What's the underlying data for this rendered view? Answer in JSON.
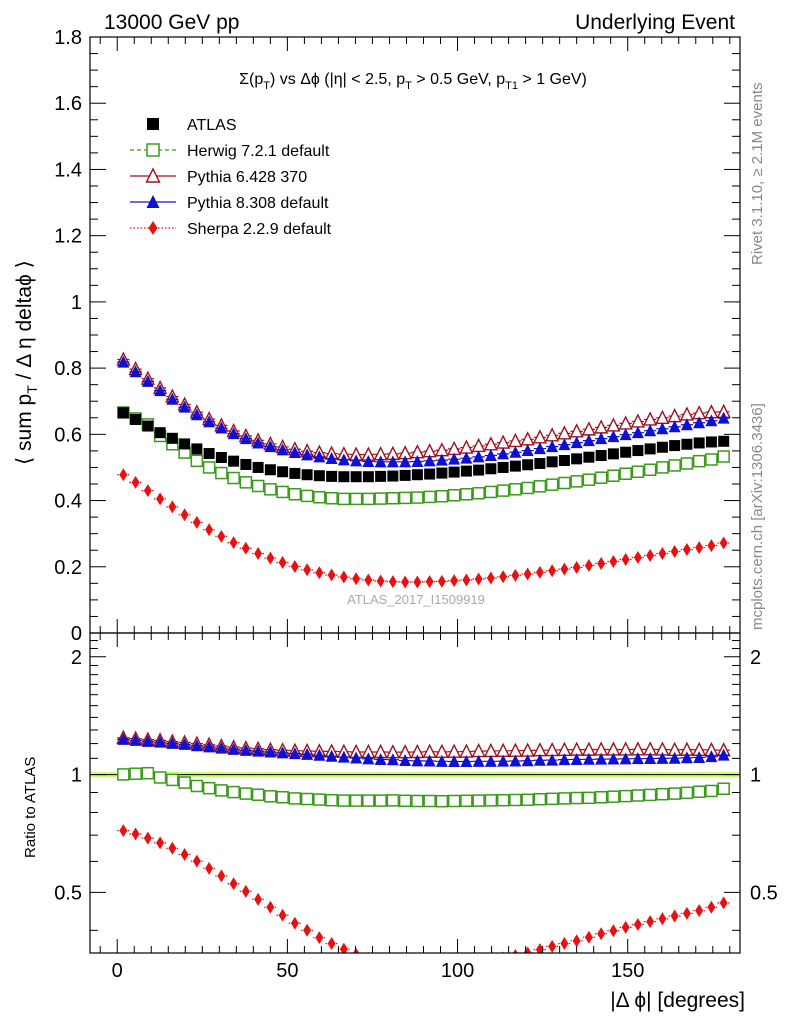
{
  "header": {
    "left": "13000 GeV pp",
    "right": "Underlying Event"
  },
  "side_labels": {
    "rivet": "Rivet 3.1.10, ≥ 2.1M events",
    "mcplots": "mcplots.cern.ch [arXiv:1306.3436]"
  },
  "watermark": "ATLAS_2017_I1509919",
  "title": {
    "p1": "Σ(p",
    "p1_sub": "T",
    "p2": ") vs Δϕ (|η| < 2.5, p",
    "p2_sub": "T",
    "p3": " > 0.5 GeV, p",
    "p3_sub": "T1",
    "p4": " > 1 GeV)"
  },
  "ylabel_main": {
    "a": "⟨ sum p",
    "a_sub": "T",
    "b": " / Δ η deltaϕ ⟩"
  },
  "ylabel_ratio": "Ratio to ATLAS",
  "xlabel": "|Δ ϕ| [degrees]",
  "colors": {
    "atlas": "#000000",
    "herwig": "#3a9a1a",
    "pythia6": "#a01020",
    "pythia8": "#1010d0",
    "sherpa": "#e81010",
    "band": "#ccff66"
  },
  "chart_data": [
    {
      "type": "scatter",
      "title": "Σ(pT) vs Δϕ (|η| < 2.5, pT > 0.5 GeV, pT1 > 1 GeV)",
      "xlabel": "|Δ ϕ| [degrees]",
      "ylabel": "⟨ sum pT / Δ η deltaϕ ⟩",
      "xlim": [
        -8,
        183
      ],
      "ylim": [
        0,
        1.8
      ],
      "yticks": [
        0,
        0.2,
        0.4,
        0.6,
        0.8,
        1,
        1.2,
        1.4,
        1.6,
        1.8
      ],
      "ytick_labels": [
        "0",
        "0.2",
        "0.4",
        "0.6",
        "0.8",
        "1",
        "1.2",
        "1.4",
        "1.6",
        "1.8"
      ],
      "xticks": [
        0,
        50,
        100,
        150
      ],
      "xtick_labels": [
        "0",
        "50",
        "100",
        "150"
      ],
      "grid": false,
      "legend_position": "top-left",
      "x": [
        1.8,
        5.4,
        9.0,
        12.6,
        16.2,
        19.8,
        23.4,
        27.0,
        30.6,
        34.2,
        37.8,
        41.4,
        45.0,
        48.6,
        52.2,
        55.8,
        59.4,
        63.0,
        66.6,
        70.2,
        73.8,
        77.4,
        81.0,
        84.6,
        88.2,
        91.8,
        95.4,
        99.0,
        102.6,
        106.2,
        109.8,
        113.4,
        117.0,
        120.6,
        124.2,
        127.8,
        131.4,
        135.0,
        138.6,
        142.2,
        145.8,
        149.4,
        153.0,
        156.6,
        160.2,
        163.8,
        167.4,
        171.0,
        174.6,
        178.2
      ],
      "series": [
        {
          "name": "ATLAS",
          "marker": "square-filled",
          "values": [
            0.665,
            0.645,
            0.625,
            0.605,
            0.588,
            0.571,
            0.556,
            0.542,
            0.53,
            0.519,
            0.509,
            0.5,
            0.493,
            0.487,
            0.482,
            0.478,
            0.475,
            0.473,
            0.472,
            0.472,
            0.472,
            0.473,
            0.474,
            0.476,
            0.478,
            0.48,
            0.483,
            0.486,
            0.489,
            0.492,
            0.496,
            0.5,
            0.504,
            0.508,
            0.512,
            0.517,
            0.521,
            0.526,
            0.531,
            0.536,
            0.541,
            0.546,
            0.551,
            0.556,
            0.561,
            0.566,
            0.57,
            0.574,
            0.577,
            0.579
          ]
        },
        {
          "name": "Herwig 7.2.1 default",
          "marker": "square-open",
          "values": [
            0.666,
            0.648,
            0.63,
            0.595,
            0.57,
            0.545,
            0.52,
            0.5,
            0.483,
            0.468,
            0.455,
            0.444,
            0.434,
            0.426,
            0.419,
            0.414,
            0.41,
            0.407,
            0.405,
            0.405,
            0.405,
            0.406,
            0.407,
            0.408,
            0.409,
            0.411,
            0.413,
            0.416,
            0.419,
            0.422,
            0.426,
            0.43,
            0.434,
            0.438,
            0.443,
            0.448,
            0.453,
            0.458,
            0.463,
            0.469,
            0.475,
            0.481,
            0.487,
            0.493,
            0.5,
            0.506,
            0.512,
            0.519,
            0.524,
            0.533
          ]
        },
        {
          "name": "Pythia 6.428 370",
          "marker": "triangle-open",
          "values": [
            0.826,
            0.797,
            0.768,
            0.74,
            0.714,
            0.69,
            0.667,
            0.646,
            0.627,
            0.61,
            0.595,
            0.582,
            0.571,
            0.562,
            0.555,
            0.549,
            0.545,
            0.542,
            0.54,
            0.539,
            0.539,
            0.54,
            0.541,
            0.543,
            0.546,
            0.549,
            0.552,
            0.556,
            0.56,
            0.565,
            0.57,
            0.575,
            0.58,
            0.585,
            0.591,
            0.597,
            0.603,
            0.609,
            0.615,
            0.621,
            0.627,
            0.633,
            0.639,
            0.645,
            0.65,
            0.655,
            0.66,
            0.664,
            0.667,
            0.668
          ]
        },
        {
          "name": "Pythia 8.308 default",
          "marker": "triangle-filled",
          "values": [
            0.818,
            0.789,
            0.76,
            0.732,
            0.706,
            0.682,
            0.659,
            0.638,
            0.619,
            0.602,
            0.587,
            0.574,
            0.563,
            0.553,
            0.545,
            0.538,
            0.532,
            0.527,
            0.523,
            0.52,
            0.518,
            0.517,
            0.517,
            0.517,
            0.518,
            0.52,
            0.522,
            0.525,
            0.528,
            0.532,
            0.536,
            0.541,
            0.546,
            0.551,
            0.557,
            0.563,
            0.569,
            0.575,
            0.581,
            0.587,
            0.593,
            0.599,
            0.605,
            0.611,
            0.617,
            0.623,
            0.629,
            0.635,
            0.641,
            0.649
          ]
        },
        {
          "name": "Sherpa 2.2.9 default",
          "marker": "diamond-filled",
          "values": [
            0.478,
            0.455,
            0.43,
            0.405,
            0.381,
            0.357,
            0.334,
            0.312,
            0.292,
            0.273,
            0.256,
            0.24,
            0.226,
            0.213,
            0.201,
            0.191,
            0.182,
            0.175,
            0.169,
            0.164,
            0.16,
            0.157,
            0.155,
            0.154,
            0.154,
            0.155,
            0.156,
            0.158,
            0.16,
            0.163,
            0.166,
            0.17,
            0.174,
            0.178,
            0.183,
            0.188,
            0.193,
            0.198,
            0.204,
            0.21,
            0.216,
            0.222,
            0.228,
            0.234,
            0.24,
            0.246,
            0.252,
            0.258,
            0.264,
            0.272
          ]
        }
      ]
    },
    {
      "type": "scatter",
      "xlabel": "|Δ ϕ| [degrees]",
      "ylabel": "Ratio to ATLAS",
      "xlim": [
        -8,
        183
      ],
      "ylim": [
        0.35,
        2.3
      ],
      "yscale": "log",
      "yticks": [
        0.5,
        1,
        2
      ],
      "ytick_labels": [
        "0.5",
        "1",
        "2"
      ],
      "xticks": [
        0,
        50,
        100,
        150
      ],
      "xtick_labels": [
        "0",
        "50",
        "100",
        "150"
      ],
      "grid": false,
      "reference_band": [
        0.985,
        1.015
      ],
      "x": [
        1.8,
        5.4,
        9.0,
        12.6,
        16.2,
        19.8,
        23.4,
        27.0,
        30.6,
        34.2,
        37.8,
        41.4,
        45.0,
        48.6,
        52.2,
        55.8,
        59.4,
        63.0,
        66.6,
        70.2,
        73.8,
        77.4,
        81.0,
        84.6,
        88.2,
        91.8,
        95.4,
        99.0,
        102.6,
        106.2,
        109.8,
        113.4,
        117.0,
        120.6,
        124.2,
        127.8,
        131.4,
        135.0,
        138.6,
        142.2,
        145.8,
        149.4,
        153.0,
        156.6,
        160.2,
        163.8,
        167.4,
        171.0,
        174.6,
        178.2
      ],
      "series": [
        {
          "name": "Herwig 7.2.1 default",
          "marker": "square-open",
          "values": [
            1.001,
            1.005,
            1.008,
            0.983,
            0.969,
            0.954,
            0.935,
            0.923,
            0.911,
            0.902,
            0.894,
            0.888,
            0.88,
            0.875,
            0.869,
            0.866,
            0.863,
            0.86,
            0.858,
            0.858,
            0.858,
            0.858,
            0.859,
            0.857,
            0.856,
            0.856,
            0.855,
            0.856,
            0.857,
            0.858,
            0.859,
            0.86,
            0.861,
            0.862,
            0.865,
            0.867,
            0.869,
            0.871,
            0.872,
            0.875,
            0.878,
            0.881,
            0.884,
            0.887,
            0.891,
            0.894,
            0.898,
            0.904,
            0.908,
            0.92
          ]
        },
        {
          "name": "Pythia 6.428 370",
          "marker": "triangle-open",
          "values": [
            1.242,
            1.236,
            1.229,
            1.223,
            1.214,
            1.208,
            1.2,
            1.192,
            1.183,
            1.175,
            1.169,
            1.164,
            1.158,
            1.154,
            1.151,
            1.149,
            1.147,
            1.146,
            1.144,
            1.142,
            1.142,
            1.142,
            1.141,
            1.141,
            1.142,
            1.144,
            1.143,
            1.144,
            1.145,
            1.148,
            1.149,
            1.15,
            1.151,
            1.152,
            1.154,
            1.155,
            1.157,
            1.158,
            1.158,
            1.159,
            1.159,
            1.159,
            1.16,
            1.16,
            1.159,
            1.157,
            1.158,
            1.157,
            1.156,
            1.154
          ]
        },
        {
          "name": "Pythia 8.308 default",
          "marker": "triangle-filled",
          "values": [
            1.23,
            1.223,
            1.216,
            1.21,
            1.201,
            1.194,
            1.185,
            1.177,
            1.168,
            1.16,
            1.153,
            1.148,
            1.142,
            1.136,
            1.131,
            1.126,
            1.12,
            1.114,
            1.108,
            1.102,
            1.097,
            1.093,
            1.091,
            1.086,
            1.084,
            1.083,
            1.081,
            1.08,
            1.08,
            1.081,
            1.081,
            1.082,
            1.083,
            1.085,
            1.088,
            1.089,
            1.092,
            1.093,
            1.094,
            1.095,
            1.096,
            1.097,
            1.098,
            1.099,
            1.1,
            1.101,
            1.104,
            1.106,
            1.111,
            1.121
          ]
        },
        {
          "name": "Sherpa 2.2.9 default",
          "marker": "diamond-filled",
          "values": [
            0.719,
            0.705,
            0.688,
            0.669,
            0.648,
            0.625,
            0.601,
            0.576,
            0.551,
            0.526,
            0.503,
            0.48,
            0.458,
            0.437,
            0.417,
            0.4,
            0.383,
            0.37,
            0.358,
            0.347,
            0.339,
            0.332,
            0.327,
            0.324,
            0.322,
            0.323,
            0.323,
            0.325,
            0.327,
            0.331,
            0.335,
            0.34,
            0.345,
            0.35,
            0.357,
            0.364,
            0.37,
            0.376,
            0.384,
            0.392,
            0.399,
            0.407,
            0.414,
            0.421,
            0.428,
            0.435,
            0.442,
            0.449,
            0.458,
            0.47
          ]
        }
      ]
    }
  ]
}
